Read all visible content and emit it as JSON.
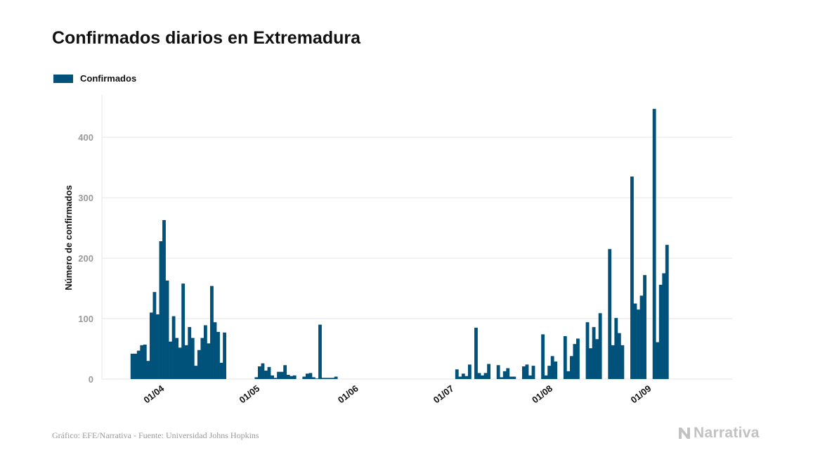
{
  "title": "Confirmados diarios en Extremadura",
  "footer": "Gráfico: EFE/Narrativa - Fuente: Universidad Johns Hopkins",
  "logo": {
    "text": "Narrativa",
    "icon": "narrativa-n-logo-icon",
    "color": "#c2c2c2"
  },
  "colors": {
    "bar": "#00527a",
    "grid": "#e6e6e6",
    "tick": "#9a9a9a"
  },
  "chart_data": {
    "type": "bar",
    "title": "Confirmados diarios en Extremadura",
    "ylabel": "Número de confirmados",
    "xlabel": "",
    "ylim": [
      0,
      470
    ],
    "yticks": [
      0,
      100,
      200,
      300,
      400
    ],
    "xlim": [
      "2020-03-14",
      "2020-09-28"
    ],
    "xticks": [
      {
        "date": "2020-04-01",
        "label": "01/04"
      },
      {
        "date": "2020-05-01",
        "label": "01/05"
      },
      {
        "date": "2020-06-01",
        "label": "01/06"
      },
      {
        "date": "2020-07-01",
        "label": "01/07"
      },
      {
        "date": "2020-08-01",
        "label": "01/08"
      },
      {
        "date": "2020-09-01",
        "label": "01/09"
      }
    ],
    "grid": true,
    "legend": "top-left",
    "series": [
      {
        "name": "Confirmados",
        "color": "#00527a",
        "points": [
          [
            "2020-03-23",
            42
          ],
          [
            "2020-03-24",
            42
          ],
          [
            "2020-03-25",
            47
          ],
          [
            "2020-03-26",
            56
          ],
          [
            "2020-03-27",
            57
          ],
          [
            "2020-03-28",
            30
          ],
          [
            "2020-03-29",
            110
          ],
          [
            "2020-03-30",
            144
          ],
          [
            "2020-03-31",
            107
          ],
          [
            "2020-04-01",
            228
          ],
          [
            "2020-04-02",
            263
          ],
          [
            "2020-04-03",
            163
          ],
          [
            "2020-04-04",
            62
          ],
          [
            "2020-04-05",
            104
          ],
          [
            "2020-04-06",
            68
          ],
          [
            "2020-04-07",
            52
          ],
          [
            "2020-04-08",
            158
          ],
          [
            "2020-04-09",
            56
          ],
          [
            "2020-04-10",
            86
          ],
          [
            "2020-04-11",
            68
          ],
          [
            "2020-04-12",
            22
          ],
          [
            "2020-04-13",
            48
          ],
          [
            "2020-04-14",
            68
          ],
          [
            "2020-04-15",
            89
          ],
          [
            "2020-04-16",
            59
          ],
          [
            "2020-04-17",
            154
          ],
          [
            "2020-04-18",
            94
          ],
          [
            "2020-04-19",
            78
          ],
          [
            "2020-04-20",
            27
          ],
          [
            "2020-04-21",
            77
          ],
          [
            "2020-05-01",
            3
          ],
          [
            "2020-05-02",
            21
          ],
          [
            "2020-05-03",
            26
          ],
          [
            "2020-05-04",
            14
          ],
          [
            "2020-05-05",
            20
          ],
          [
            "2020-05-06",
            6
          ],
          [
            "2020-05-07",
            2
          ],
          [
            "2020-05-08",
            12
          ],
          [
            "2020-05-09",
            12
          ],
          [
            "2020-05-10",
            23
          ],
          [
            "2020-05-11",
            7
          ],
          [
            "2020-05-12",
            5
          ],
          [
            "2020-05-13",
            6
          ],
          [
            "2020-05-16",
            4
          ],
          [
            "2020-05-17",
            9
          ],
          [
            "2020-05-18",
            10
          ],
          [
            "2020-05-19",
            3
          ],
          [
            "2020-05-20",
            1
          ],
          [
            "2020-05-21",
            90
          ],
          [
            "2020-05-22",
            2
          ],
          [
            "2020-05-23",
            2
          ],
          [
            "2020-05-24",
            2
          ],
          [
            "2020-05-25",
            2
          ],
          [
            "2020-05-26",
            4
          ],
          [
            "2020-07-03",
            16
          ],
          [
            "2020-07-04",
            4
          ],
          [
            "2020-07-05",
            9
          ],
          [
            "2020-07-06",
            5
          ],
          [
            "2020-07-07",
            24
          ],
          [
            "2020-07-09",
            85
          ],
          [
            "2020-07-10",
            10
          ],
          [
            "2020-07-11",
            6
          ],
          [
            "2020-07-12",
            10
          ],
          [
            "2020-07-13",
            25
          ],
          [
            "2020-07-16",
            23
          ],
          [
            "2020-07-17",
            3
          ],
          [
            "2020-07-18",
            13
          ],
          [
            "2020-07-19",
            18
          ],
          [
            "2020-07-20",
            4
          ],
          [
            "2020-07-21",
            4
          ],
          [
            "2020-07-24",
            21
          ],
          [
            "2020-07-25",
            24
          ],
          [
            "2020-07-26",
            6
          ],
          [
            "2020-07-27",
            22
          ],
          [
            "2020-07-30",
            74
          ],
          [
            "2020-07-31",
            6
          ],
          [
            "2020-08-01",
            22
          ],
          [
            "2020-08-02",
            38
          ],
          [
            "2020-08-03",
            29
          ],
          [
            "2020-08-06",
            71
          ],
          [
            "2020-08-07",
            13
          ],
          [
            "2020-08-08",
            38
          ],
          [
            "2020-08-09",
            58
          ],
          [
            "2020-08-10",
            67
          ],
          [
            "2020-08-13",
            94
          ],
          [
            "2020-08-14",
            51
          ],
          [
            "2020-08-15",
            86
          ],
          [
            "2020-08-16",
            66
          ],
          [
            "2020-08-17",
            109
          ],
          [
            "2020-08-20",
            215
          ],
          [
            "2020-08-21",
            56
          ],
          [
            "2020-08-22",
            101
          ],
          [
            "2020-08-23",
            76
          ],
          [
            "2020-08-24",
            56
          ],
          [
            "2020-08-27",
            335
          ],
          [
            "2020-08-28",
            125
          ],
          [
            "2020-08-29",
            115
          ],
          [
            "2020-08-30",
            138
          ],
          [
            "2020-08-31",
            172
          ],
          [
            "2020-09-03",
            447
          ],
          [
            "2020-09-04",
            61
          ],
          [
            "2020-09-05",
            156
          ],
          [
            "2020-09-06",
            175
          ],
          [
            "2020-09-07",
            222
          ]
        ]
      }
    ]
  }
}
